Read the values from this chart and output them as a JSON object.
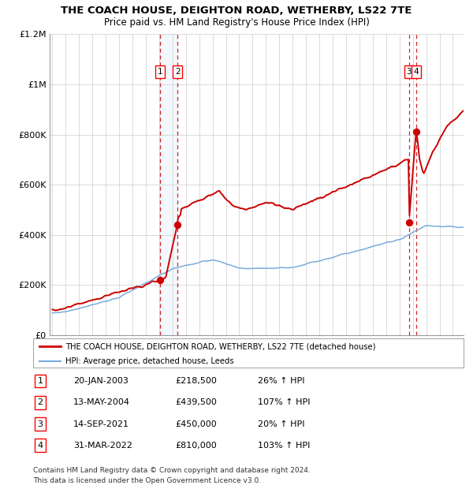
{
  "title": "THE COACH HOUSE, DEIGHTON ROAD, WETHERBY, LS22 7TE",
  "subtitle": "Price paid vs. HM Land Registry's House Price Index (HPI)",
  "legend_line1": "THE COACH HOUSE, DEIGHTON ROAD, WETHERBY, LS22 7TE (detached house)",
  "legend_line2": "HPI: Average price, detached house, Leeds",
  "footnote1": "Contains HM Land Registry data © Crown copyright and database right 2024.",
  "footnote2": "This data is licensed under the Open Government Licence v3.0.",
  "transactions": [
    {
      "num": 1,
      "date": "20-JAN-2003",
      "price": 218500,
      "pct": "26%",
      "dir": "↑",
      "year": 2003.05
    },
    {
      "num": 2,
      "date": "13-MAY-2004",
      "price": 439500,
      "pct": "107%",
      "dir": "↑",
      "year": 2004.37
    },
    {
      "num": 3,
      "date": "14-SEP-2021",
      "price": 450000,
      "pct": "20%",
      "dir": "↑",
      "year": 2021.71
    },
    {
      "num": 4,
      "date": "31-MAR-2022",
      "price": 810000,
      "pct": "103%",
      "dir": "↑",
      "year": 2022.25
    }
  ],
  "hpi_line_color": "#7aacdc",
  "price_line_color": "#cc0000",
  "dot_color": "#cc0000",
  "dashed_line_color": "#cc0000",
  "shade_color": "#d0e4f7",
  "ylim": [
    0,
    1200000
  ],
  "yticks": [
    0,
    200000,
    400000,
    600000,
    800000,
    1000000,
    1200000
  ],
  "ylabel_format": [
    "£0",
    "£200K",
    "£400K",
    "£600K",
    "£800K",
    "£1M",
    "£1.2M"
  ],
  "xlim_start": 1994.8,
  "xlim_end": 2025.8,
  "xticks": [
    1995,
    1996,
    1997,
    1998,
    1999,
    2000,
    2001,
    2002,
    2003,
    2004,
    2005,
    2006,
    2007,
    2008,
    2009,
    2010,
    2011,
    2012,
    2013,
    2014,
    2015,
    2016,
    2017,
    2018,
    2019,
    2020,
    2021,
    2022,
    2023,
    2024,
    2025
  ],
  "background_color": "#ffffff",
  "grid_color": "#cccccc",
  "table_rows": [
    [
      "1",
      "20-JAN-2003",
      "£218,500",
      "26% ↑ HPI"
    ],
    [
      "2",
      "13-MAY-2004",
      "£439,500",
      "107% ↑ HPI"
    ],
    [
      "3",
      "14-SEP-2021",
      "£450,000",
      "20% ↑ HPI"
    ],
    [
      "4",
      "31-MAR-2022",
      "£810,000",
      "103% ↑ HPI"
    ]
  ]
}
